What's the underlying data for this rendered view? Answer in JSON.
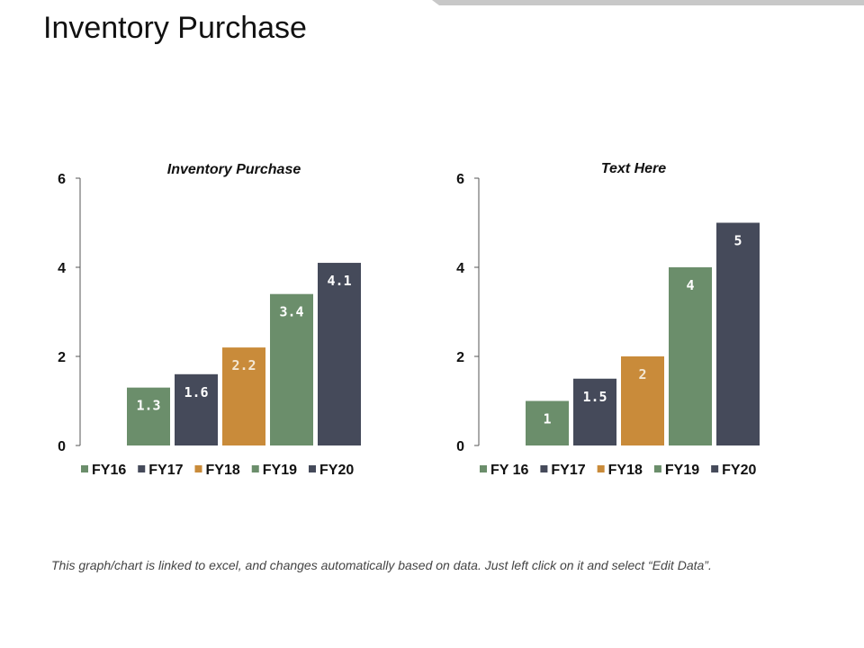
{
  "page": {
    "title": "Inventory Purchase",
    "footer_note": "This graph/chart is linked to excel, and changes automatically based on data. Just left click on it and select “Edit Data”."
  },
  "colors": {
    "green": "#6b8e6b",
    "navy": "#454a5a",
    "orange": "#c98b3a"
  },
  "chart_data": [
    {
      "type": "bar",
      "title": "Inventory Purchase",
      "categories": [
        "FY16",
        "FY17",
        "FY18",
        "FY19",
        "FY20"
      ],
      "values": [
        1.3,
        1.6,
        2.2,
        3.4,
        4.1
      ],
      "value_labels": [
        "1.3",
        "1.6",
        "2.2",
        "3.4",
        "4.1"
      ],
      "legend": [
        "FY16",
        "FY17",
        "FY18",
        "FY19",
        "FY20"
      ],
      "bar_colors": [
        "#6b8e6b",
        "#454a5a",
        "#c98b3a",
        "#6b8e6b",
        "#454a5a"
      ],
      "ylim": [
        0,
        6
      ],
      "yticks": [
        0,
        2,
        4,
        6
      ],
      "legend_position": "bottom",
      "grid": false
    },
    {
      "type": "bar",
      "title": "Text Here",
      "categories": [
        "FY 16",
        "FY17",
        "FY18",
        "FY19",
        "FY20"
      ],
      "values": [
        1,
        1.5,
        2,
        4,
        5
      ],
      "value_labels": [
        "1",
        "1.5",
        "2",
        "4",
        "5"
      ],
      "legend": [
        "FY 16",
        "FY17",
        "FY18",
        "FY19",
        "FY20"
      ],
      "bar_colors": [
        "#6b8e6b",
        "#454a5a",
        "#c98b3a",
        "#6b8e6b",
        "#454a5a"
      ],
      "ylim": [
        0,
        6
      ],
      "yticks": [
        0,
        2,
        4,
        6
      ],
      "legend_position": "bottom",
      "grid": false
    }
  ]
}
